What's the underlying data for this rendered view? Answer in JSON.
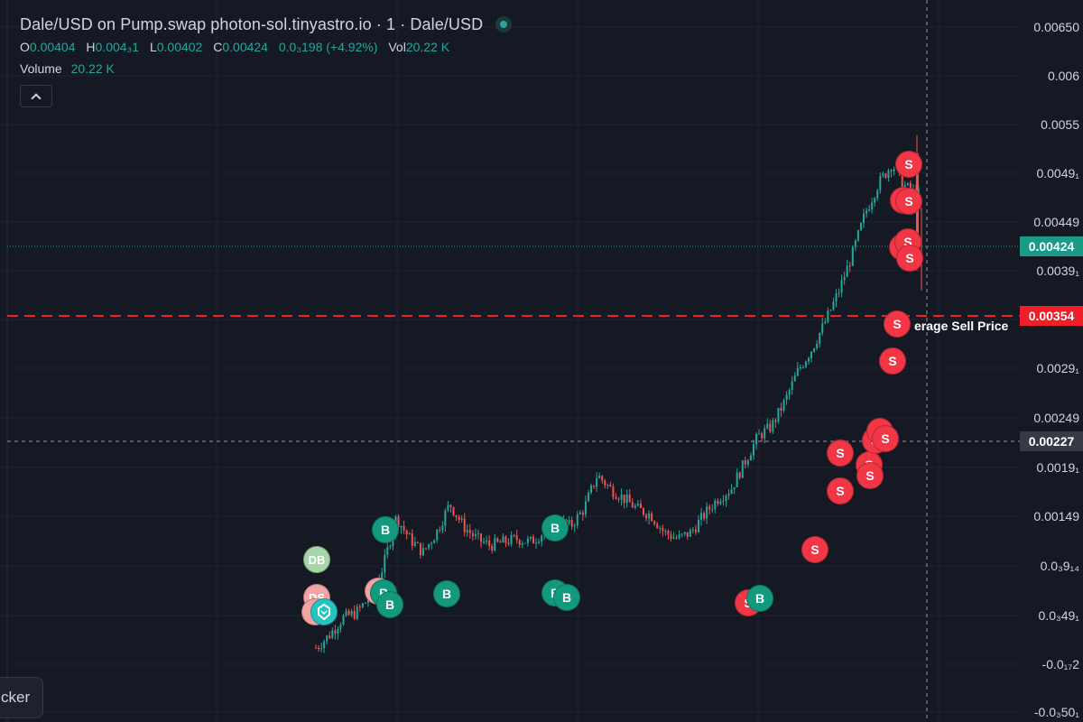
{
  "header": {
    "title": "Dale/USD on Pump.swap photon-sol.tinyastro.io · 1 · Dale/USD"
  },
  "ohlc": {
    "open_key": "O",
    "open": "0.00404",
    "high_key": "H",
    "high": "0.004₃1",
    "low_key": "L",
    "low": "0.00402",
    "close_key": "C",
    "close": "0.00424",
    "change": "0.0₃198 (+4.92%)",
    "vol_key": "Vol",
    "vol": "20.22 K"
  },
  "volume": {
    "label": "Volume",
    "value": "20.22 K"
  },
  "price_axis": {
    "ticks": [
      "0.00650",
      "0.006",
      "0.0055",
      "0.0049₁",
      "0.00449",
      "0.0039₁",
      "0.0029₁",
      "0.00249",
      "0.0019₁",
      "0.00149",
      "0.0₃9₁₄",
      "0.0₃49₁",
      "-0.0₁₇2",
      "-0.0₃50₁"
    ],
    "current_price": "0.00424",
    "avg_sell_price": "0.00354",
    "crosshair_price": "0.00227"
  },
  "annotations": {
    "avg_sell_label": "erage Sell Price"
  },
  "trade_markers": {
    "sell_label": "S",
    "buy_label": "B",
    "dev_buy_label": "DB",
    "dev_sell_label": "DS"
  },
  "tracker": {
    "label": "cker"
  },
  "colors": {
    "background": "#151924",
    "up": "#26a69a",
    "down": "#ef5350",
    "sell_marker": "#f23645",
    "buy_marker": "#139a7e",
    "avg_line": "#f01e28"
  },
  "chart_data": {
    "type": "candlestick",
    "title": "Dale/USD on Pump.swap photon-sol.tinyastro.io · 1 · Dale/USD",
    "y_axis_ticks": [
      "0.00650",
      "0.006",
      "0.0055",
      "0.0049₁",
      "0.00449",
      "0.0039₁",
      "0.0029₁",
      "0.00249",
      "0.0019₁",
      "0.00149",
      "0.0₃9₁₄",
      "0.0₃49₁",
      "-0.0₁₇2",
      "-0.0₃50₁"
    ],
    "y_scale": "log",
    "ylim": [
      0.0003,
      0.0066
    ],
    "grid": true,
    "last_ohlc": {
      "open": 0.00404,
      "high": 0.00431,
      "low": 0.00402,
      "close": 0.00424
    },
    "price_path": [
      0.00024,
      0.00026,
      0.00029,
      0.0003,
      0.00033,
      0.0004,
      0.00055,
      0.00048,
      0.00044,
      0.0005,
      0.0006,
      0.00052,
      0.00048,
      0.00046,
      0.00047,
      0.00048,
      0.00047,
      0.0005,
      0.00054,
      0.00052,
      0.00058,
      0.00072,
      0.00066,
      0.00062,
      0.00058,
      0.00056,
      0.0005,
      0.00048,
      0.0005,
      0.00056,
      0.00062,
      0.00066,
      0.00078,
      0.00092,
      0.00098,
      0.00115,
      0.0014,
      0.0016,
      0.0019,
      0.0023,
      0.0029,
      0.0038,
      0.0046,
      0.0052,
      0.0045,
      0.00424
    ],
    "horizontal_lines": [
      {
        "name": "Average Sell Price",
        "value": 0.00354,
        "style": "dashed"
      }
    ]
  }
}
